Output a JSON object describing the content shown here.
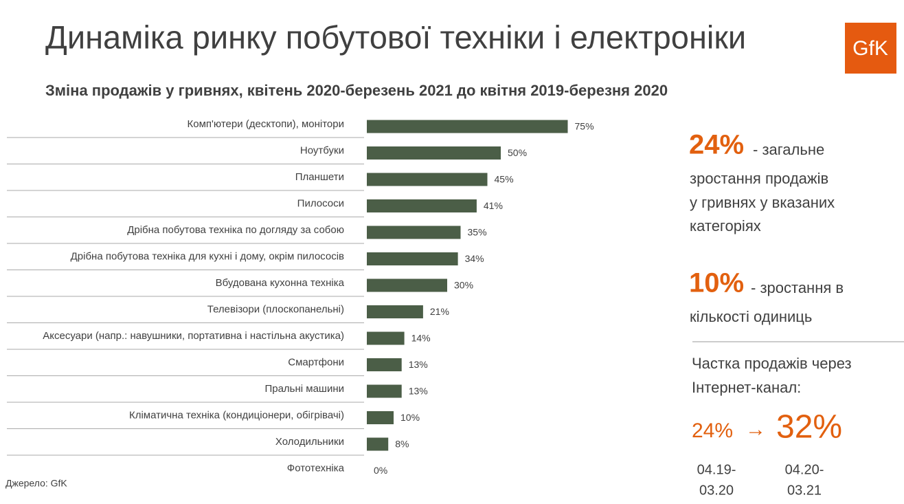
{
  "chart_data": {
    "type": "bar",
    "orientation": "horizontal",
    "title": "Динаміка ринку побутової техніки і електроніки",
    "subtitle": "Зміна продажів у гривнях, квітень 2020-березень 2021 до квітня 2019-березня 2020",
    "categories": [
      "Комп'ютери (десктопи), монітори",
      "Ноутбуки",
      "Планшети",
      "Пилососи",
      "Дрібна побутова техніка по догляду за собою",
      "Дрібна побутова техніка для кухні і дому, окрім пилососів",
      "Вбудована кухонна техніка",
      "Телевізори (плоскопанельні)",
      "Аксесуари (напр.: навушники, портативна і настільна акустика)",
      "Смартфони",
      "Пральні машини",
      "Кліматична техніка (кондиціонери, обігрівачі)",
      "Холодильники",
      "Фототехніка"
    ],
    "values": [
      75,
      50,
      45,
      41,
      35,
      34,
      30,
      21,
      14,
      13,
      13,
      10,
      8,
      0
    ],
    "value_labels": [
      "75%",
      "50%",
      "45%",
      "41%",
      "35%",
      "34%",
      "30%",
      "21%",
      "14%",
      "13%",
      "13%",
      "10%",
      "8%",
      "0%"
    ],
    "color": "#4b5e47"
  },
  "logo": "GfK",
  "source": "Джерело: GfK",
  "panel": {
    "total_value": "24%",
    "total_text": [
      "- загальне",
      "зростання продажів",
      "у гривнях у вказаних",
      "категоріях"
    ],
    "units_value": "10%",
    "units_text": [
      "- зростання в",
      "кількості одиниць"
    ],
    "online_title": [
      "Частка продажів через",
      "Інтернет-канал:"
    ],
    "online_from": "24%",
    "arrow": "→",
    "online_to": "32%",
    "periods": [
      [
        "04.19-",
        "03.20"
      ],
      [
        "04.20-",
        "03.21"
      ]
    ]
  }
}
